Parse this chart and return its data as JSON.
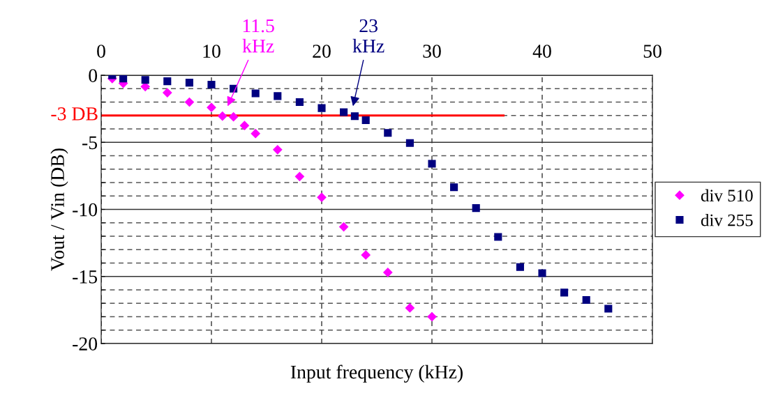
{
  "chart_data": {
    "type": "scatter",
    "xlabel": "Input frequency (kHz)",
    "ylabel": "Vout / Vin (DB)",
    "xlim": [
      0,
      50
    ],
    "xticks": [
      0,
      10,
      20,
      30,
      40,
      50
    ],
    "ylim": [
      -20,
      0
    ],
    "yticks": [
      0,
      {
        "value": -1,
        "label": null
      },
      {
        "value": -2,
        "label": null
      },
      {
        "value": -3,
        "label": null
      },
      {
        "value": -4,
        "label": null
      },
      -5,
      {
        "value": -6,
        "label": null
      },
      {
        "value": -7,
        "label": null
      },
      {
        "value": -8,
        "label": null
      },
      {
        "value": -9,
        "label": null
      },
      -10,
      {
        "value": -11,
        "label": null
      },
      {
        "value": -12,
        "label": null
      },
      {
        "value": -13,
        "label": null
      },
      {
        "value": -14,
        "label": null
      },
      -15,
      {
        "value": -16,
        "label": null
      },
      {
        "value": -17,
        "label": null
      },
      {
        "value": -18,
        "label": null
      },
      {
        "value": -19,
        "label": null
      },
      -20
    ],
    "grid": true,
    "legend": "right",
    "series": [
      {
        "name": "div 510",
        "color": "#ff00ff",
        "marker": "diamond",
        "x": [
          1,
          2,
          4,
          6,
          8,
          10,
          11,
          12,
          13,
          14,
          16,
          18,
          20,
          22,
          24,
          26,
          28,
          30
        ],
        "values": [
          -0.25,
          -0.6,
          -0.85,
          -1.3,
          -2.0,
          -2.4,
          -3.05,
          -3.1,
          -3.75,
          -4.35,
          -5.55,
          -7.55,
          -9.1,
          -11.3,
          -13.4,
          -14.7,
          -17.35,
          -18.0
        ]
      },
      {
        "name": "div 255",
        "color": "#000080",
        "marker": "square",
        "x": [
          1,
          2,
          4,
          6,
          8,
          10,
          12,
          14,
          16,
          18,
          20,
          22,
          23,
          24,
          26,
          28,
          30,
          32,
          34,
          36,
          38,
          40,
          42,
          44,
          46
        ],
        "values": [
          0,
          -0.25,
          -0.35,
          -0.45,
          -0.55,
          -0.7,
          -1.0,
          -1.35,
          -1.55,
          -2.0,
          -2.45,
          -2.75,
          -3.05,
          -3.35,
          -4.3,
          -5.05,
          -6.6,
          -8.35,
          -9.9,
          -12.05,
          -14.3,
          -14.75,
          -16.2,
          -16.75,
          -17.4
        ]
      }
    ],
    "ref_lines": [
      {
        "axis": "y",
        "value": -3,
        "label": "-3 DB",
        "color": "#ff0000"
      }
    ],
    "annotations": [
      "11.5\nkHz",
      "23\nkHz"
    ]
  }
}
